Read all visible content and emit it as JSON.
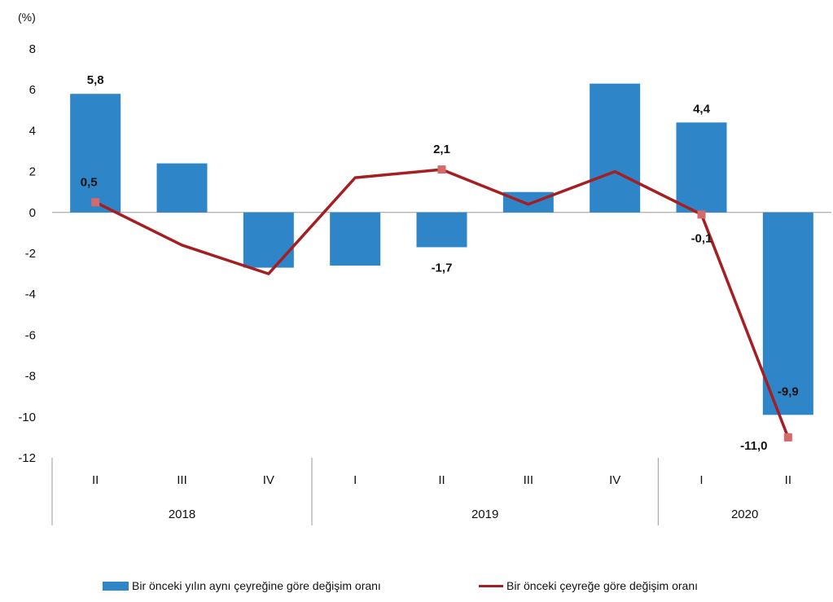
{
  "chart_data": {
    "type": "bar",
    "ylabel": "(%)",
    "ylim": [
      -12,
      8
    ],
    "yticks": [
      8,
      6,
      4,
      2,
      0,
      -2,
      -4,
      -6,
      -8,
      -10,
      -12
    ],
    "categories": [
      "II",
      "III",
      "IV",
      "I",
      "II",
      "III",
      "IV",
      "I",
      "II"
    ],
    "years": [
      {
        "label": "2018",
        "span": [
          0,
          2
        ]
      },
      {
        "label": "2019",
        "span": [
          3,
          6
        ]
      },
      {
        "label": "2020",
        "span": [
          7,
          8
        ]
      }
    ],
    "series": [
      {
        "name": "Bir önceki yılın aynı çeyreğine göre değişim oranı",
        "kind": "bar",
        "color": "#2e86c9",
        "values": [
          5.8,
          2.4,
          -2.7,
          -2.6,
          -1.7,
          1.0,
          6.3,
          4.4,
          -9.9
        ],
        "labels": [
          "5,8",
          "",
          "",
          "",
          "-1,7",
          "",
          "",
          "4,4",
          "-9,9"
        ]
      },
      {
        "name": "Bir önceki çeyreğe göre değişim oranı",
        "kind": "line",
        "color": "#a41e22",
        "marker_color": "#d46a6a",
        "values": [
          0.5,
          -1.6,
          -3.0,
          1.7,
          2.1,
          0.4,
          2.0,
          -0.1,
          -11.0
        ],
        "labels": [
          "0,5",
          "",
          "",
          "",
          "2,1",
          "",
          "",
          "-0,1",
          "-11,0"
        ]
      }
    ],
    "legend": "bottom"
  }
}
